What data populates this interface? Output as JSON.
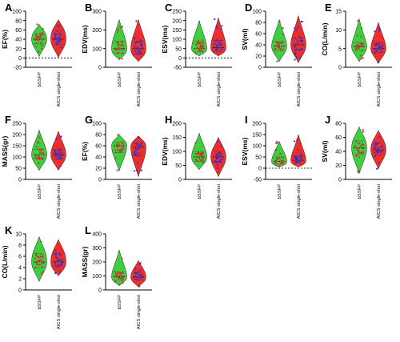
{
  "figure": {
    "violin_colors": {
      "bSSFP": "#33cc33",
      "AICS single-shot": "#ee2222"
    },
    "point_colors": {
      "bSSFP": "#cc3333",
      "AICS single-shot": "#3333cc"
    }
  },
  "chart_data": [
    {
      "panel": "A",
      "type": "violin",
      "ylabel": "EF(%)",
      "categories": [
        "bSSFP",
        "AICS single-shot"
      ],
      "yticks": [
        -20,
        0,
        20,
        40,
        60,
        80,
        100
      ],
      "ylim": [
        -20,
        100
      ],
      "zero_line": true,
      "series": [
        {
          "name": "bSSFP",
          "median": 40,
          "q1": 30,
          "q3": 52,
          "min": 3,
          "max": 72
        },
        {
          "name": "AICS single-shot",
          "median": 40,
          "q1": 28,
          "q3": 58,
          "min": 1,
          "max": 82
        }
      ]
    },
    {
      "panel": "B",
      "type": "violin",
      "ylabel": "EDV(ms)",
      "categories": [
        "bSSFP",
        "AICS single-shot"
      ],
      "yticks": [
        0,
        100,
        200,
        300
      ],
      "ylim": [
        0,
        300
      ],
      "zero_line": false,
      "series": [
        {
          "name": "bSSFP",
          "median": 100,
          "q1": 75,
          "q3": 140,
          "min": 40,
          "max": 255
        },
        {
          "name": "AICS single-shot",
          "median": 100,
          "q1": 70,
          "q3": 140,
          "min": 30,
          "max": 255
        }
      ]
    },
    {
      "panel": "C",
      "type": "violin",
      "ylabel": "ESV(ms)",
      "categories": [
        "bSSFP",
        "AICS single-shot"
      ],
      "yticks": [
        -50,
        0,
        50,
        100,
        150,
        200,
        250
      ],
      "ylim": [
        -50,
        250
      ],
      "zero_line": true,
      "series": [
        {
          "name": "bSSFP",
          "median": 50,
          "q1": 35,
          "q3": 85,
          "min": 10,
          "max": 200
        },
        {
          "name": "AICS single-shot",
          "median": 55,
          "q1": 35,
          "q3": 95,
          "min": 10,
          "max": 215
        }
      ]
    },
    {
      "panel": "D",
      "type": "violin",
      "ylabel": "SV(ml)",
      "categories": [
        "bSSFP",
        "AICS single-shot"
      ],
      "yticks": [
        0,
        20,
        40,
        60,
        80,
        100
      ],
      "ylim": [
        0,
        100
      ],
      "zero_line": false,
      "series": [
        {
          "name": "bSSFP",
          "median": 38,
          "q1": 30,
          "q3": 46,
          "min": 10,
          "max": 85
        },
        {
          "name": "AICS single-shot",
          "median": 40,
          "q1": 30,
          "q3": 52,
          "min": 8,
          "max": 92
        }
      ]
    },
    {
      "panel": "E",
      "type": "violin",
      "ylabel": "CO(L/min)",
      "categories": [
        "bSSFP",
        "AICS single-shot"
      ],
      "yticks": [
        0,
        5,
        10,
        15
      ],
      "ylim": [
        0,
        15
      ],
      "zero_line": false,
      "series": [
        {
          "name": "bSSFP",
          "median": 5.5,
          "q1": 4.5,
          "q3": 6.5,
          "min": 1.5,
          "max": 13
        },
        {
          "name": "AICS single-shot",
          "median": 5,
          "q1": 4,
          "q3": 6.5,
          "min": 1,
          "max": 12
        }
      ]
    },
    {
      "panel": "F",
      "type": "violin",
      "ylabel": "MASS(gr)",
      "categories": [
        "bSSFP",
        "AICS single-shot"
      ],
      "yticks": [
        0,
        50,
        100,
        150,
        200,
        250
      ],
      "ylim": [
        0,
        250
      ],
      "zero_line": false,
      "series": [
        {
          "name": "bSSFP",
          "median": 110,
          "q1": 90,
          "q3": 135,
          "min": 40,
          "max": 220
        },
        {
          "name": "AICS single-shot",
          "median": 110,
          "q1": 90,
          "q3": 135,
          "min": 40,
          "max": 215
        }
      ]
    },
    {
      "panel": "G",
      "type": "violin",
      "ylabel": "EF(%)",
      "categories": [
        "bSSFP",
        "AICS single-shot"
      ],
      "yticks": [
        0,
        20,
        40,
        60,
        80,
        100
      ],
      "ylim": [
        0,
        100
      ],
      "zero_line": false,
      "series": [
        {
          "name": "bSSFP",
          "median": 60,
          "q1": 48,
          "q3": 66,
          "min": 15,
          "max": 80
        },
        {
          "name": "AICS single-shot",
          "median": 58,
          "q1": 42,
          "q3": 65,
          "min": 5,
          "max": 78
        }
      ]
    },
    {
      "panel": "H",
      "type": "violin",
      "ylabel": "EDV(ms)",
      "categories": [
        "bSSFP",
        "AICS single-shot"
      ],
      "yticks": [
        0,
        50,
        100,
        150,
        200
      ],
      "ylim": [
        0,
        200
      ],
      "zero_line": false,
      "series": [
        {
          "name": "bSSFP",
          "median": 80,
          "q1": 65,
          "q3": 100,
          "min": 35,
          "max": 165
        },
        {
          "name": "AICS single-shot",
          "median": 80,
          "q1": 60,
          "q3": 100,
          "min": 10,
          "max": 150
        }
      ]
    },
    {
      "panel": "I",
      "type": "violin",
      "ylabel": "ESV(ms)",
      "categories": [
        "bSSFP",
        "AICS single-shot"
      ],
      "yticks": [
        -50,
        0,
        50,
        100,
        150,
        200
      ],
      "ylim": [
        -50,
        200
      ],
      "zero_line": true,
      "series": [
        {
          "name": "bSSFP",
          "median": 30,
          "q1": 20,
          "q3": 50,
          "min": 5,
          "max": 120
        },
        {
          "name": "AICS single-shot",
          "median": 35,
          "q1": 22,
          "q3": 55,
          "min": 5,
          "max": 150
        }
      ]
    },
    {
      "panel": "J",
      "type": "violin",
      "ylabel": "SV(ml)",
      "categories": [
        "bSSFP",
        "AICS single-shot"
      ],
      "yticks": [
        0,
        20,
        40,
        60,
        80
      ],
      "ylim": [
        0,
        80
      ],
      "zero_line": false,
      "series": [
        {
          "name": "bSSFP",
          "median": 45,
          "q1": 35,
          "q3": 55,
          "min": 8,
          "max": 75
        },
        {
          "name": "AICS single-shot",
          "median": 42,
          "q1": 35,
          "q3": 52,
          "min": 15,
          "max": 70
        }
      ]
    },
    {
      "panel": "K",
      "type": "violin",
      "ylabel": "CO(L/min)",
      "categories": [
        "bSSFP",
        "AICS single-shot"
      ],
      "yticks": [
        0,
        2,
        4,
        6,
        8,
        10
      ],
      "ylim": [
        0,
        10
      ],
      "zero_line": false,
      "series": [
        {
          "name": "bSSFP",
          "median": 5,
          "q1": 4,
          "q3": 6.5,
          "min": 1.5,
          "max": 9.5
        },
        {
          "name": "AICS single-shot",
          "median": 5,
          "q1": 4,
          "q3": 6.5,
          "min": 2.5,
          "max": 9
        }
      ]
    },
    {
      "panel": "L",
      "type": "violin",
      "ylabel": "MASS(gr)",
      "categories": [
        "bSSFP",
        "AICS single-shot"
      ],
      "yticks": [
        0,
        100,
        200,
        300,
        400
      ],
      "ylim": [
        0,
        400
      ],
      "zero_line": false,
      "series": [
        {
          "name": "bSSFP",
          "median": 95,
          "q1": 70,
          "q3": 130,
          "min": 30,
          "max": 285
        },
        {
          "name": "AICS single-shot",
          "median": 90,
          "q1": 70,
          "q3": 125,
          "min": 20,
          "max": 210
        }
      ]
    }
  ]
}
